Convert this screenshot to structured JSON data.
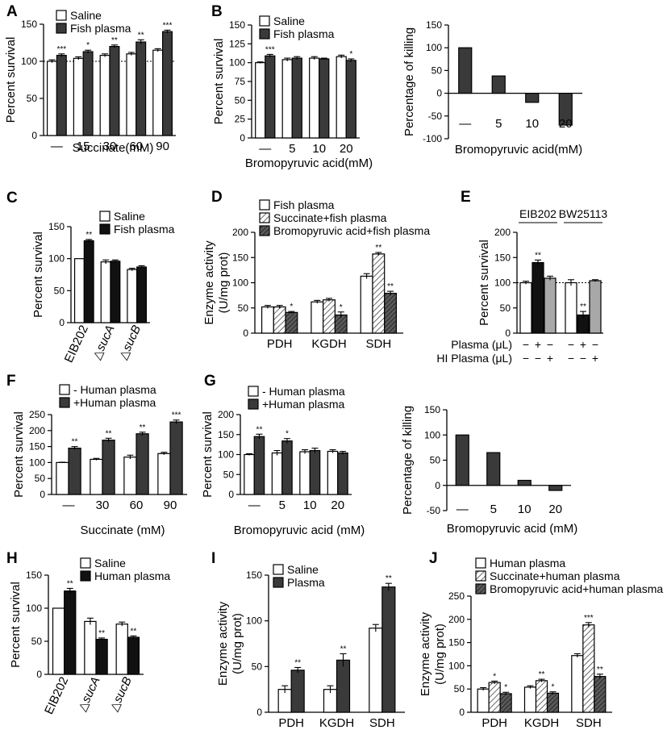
{
  "figure": {
    "title": "Multi-panel bar chart figure: percent survival, percentage of killing and enzyme activity"
  },
  "colors": {
    "black": "#111111",
    "dark": "#3a3a3a",
    "white": "#ffffff",
    "gray": "#a8a8a8"
  },
  "chart_data": [
    {
      "id": "A",
      "type": "bar",
      "letter": "A",
      "ylabel": "Percent survival",
      "xlabel": "Succinate(mM)",
      "ylim": [
        0,
        150
      ],
      "yticks": [
        0,
        50,
        100,
        150
      ],
      "categories": [
        "—",
        "15",
        "30",
        "60",
        "90"
      ],
      "series": [
        {
          "name": "Saline",
          "fill": "white",
          "values": [
            100,
            104,
            108,
            110,
            115
          ],
          "errors": [
            2,
            2,
            2,
            2,
            2
          ]
        },
        {
          "name": "Fish plasma",
          "fill": "dark",
          "values": [
            108,
            113,
            120,
            126,
            140
          ],
          "errors": [
            2,
            2,
            2,
            3,
            2
          ]
        }
      ],
      "stars": [
        [
          null,
          "***"
        ],
        [
          null,
          "*"
        ],
        [
          null,
          "**"
        ],
        [
          null,
          "**"
        ],
        [
          null,
          "***"
        ]
      ],
      "refline": 100,
      "legend": "top-left"
    },
    {
      "id": "B",
      "type": "bar",
      "letter": "B",
      "ylabel": "Percent survival",
      "xlabel": "Bromopyruvic acid(mM)",
      "ylim": [
        0,
        150
      ],
      "yticks": [
        0,
        25,
        50,
        75,
        100,
        125,
        150
      ],
      "categories": [
        "—",
        "5",
        "10",
        "20"
      ],
      "series": [
        {
          "name": "Saline",
          "fill": "white",
          "values": [
            100,
            104,
            106,
            108
          ],
          "errors": [
            1,
            2,
            2,
            2
          ]
        },
        {
          "name": "Fish plasma",
          "fill": "dark",
          "values": [
            109,
            106,
            105,
            103
          ],
          "errors": [
            2,
            2,
            1,
            2
          ]
        }
      ],
      "stars": [
        [
          null,
          "***"
        ],
        [
          null,
          null
        ],
        [
          null,
          null
        ],
        [
          null,
          "*"
        ]
      ],
      "legend": "top-left"
    },
    {
      "id": "B2",
      "type": "bar",
      "ylabel": "Percentage of  killing",
      "xlabel": "Bromopyruvic acid(mM)",
      "ylim": [
        -100,
        150
      ],
      "yticks": [
        -100,
        -50,
        0,
        50,
        100,
        150
      ],
      "categories": [
        "—",
        "5",
        "10",
        "20"
      ],
      "series": [
        {
          "name": "Percentage of killing",
          "fill": "dark",
          "values": [
            100,
            38,
            -20,
            -70
          ]
        }
      ],
      "categories_at_bottom": true
    },
    {
      "id": "C",
      "type": "bar",
      "letter": "C",
      "ylabel": "Percent survival",
      "ylim": [
        0,
        150
      ],
      "yticks": [
        0,
        50,
        100,
        150
      ],
      "categories": [
        "EIB202",
        "△sucA",
        "△sucB"
      ],
      "series": [
        {
          "name": "Saline",
          "fill": "white",
          "values": [
            100,
            95,
            83
          ],
          "errors": [
            0,
            3,
            2
          ]
        },
        {
          "name": "Fish plasma",
          "fill": "black",
          "values": [
            128,
            96,
            87
          ],
          "errors": [
            2,
            2,
            2
          ]
        }
      ],
      "stars": [
        [
          null,
          "**"
        ],
        [
          null,
          null
        ],
        [
          null,
          null
        ]
      ],
      "rotated_labels": true,
      "legend": "top-right"
    },
    {
      "id": "D",
      "type": "bar",
      "letter": "D",
      "ylabel": "Enzyme activity",
      "ylabel2": "(U/mg prot)",
      "ylim": [
        0,
        200
      ],
      "yticks": [
        0,
        50,
        100,
        150,
        200
      ],
      "categories": [
        "PDH",
        "KGDH",
        "SDH"
      ],
      "series": [
        {
          "name": "Fish plasma",
          "fill": "white",
          "values": [
            52,
            62,
            113
          ],
          "errors": [
            3,
            3,
            5
          ]
        },
        {
          "name": "Succinate+fish plasma",
          "fill": "hatch",
          "values": [
            52,
            66,
            157
          ],
          "errors": [
            3,
            3,
            3
          ]
        },
        {
          "name": "Bromopyruvic acid+fish plasma",
          "fill": "hatchdark",
          "values": [
            41,
            36,
            79
          ],
          "errors": [
            2,
            6,
            4
          ]
        }
      ],
      "stars": [
        [
          null,
          null,
          "*"
        ],
        [
          null,
          null,
          "*"
        ],
        [
          null,
          "**",
          "**"
        ]
      ],
      "legend": "top-left"
    },
    {
      "id": "E",
      "type": "bar",
      "letter": "E",
      "ylabel": "Percent survival",
      "ylim": [
        0,
        200
      ],
      "yticks": [
        0,
        50,
        100,
        150,
        200
      ],
      "group_titles": [
        "EIB202",
        "BW25113"
      ],
      "groups": [
        {
          "values": [
            100,
            140,
            109
          ],
          "errors": [
            3,
            5,
            4
          ],
          "fills": [
            "white",
            "black",
            "gray"
          ],
          "stars": [
            null,
            "**",
            null
          ]
        },
        {
          "values": [
            100,
            36,
            104
          ],
          "errors": [
            6,
            7,
            2
          ],
          "fills": [
            "white",
            "black",
            "gray"
          ],
          "stars": [
            null,
            "**",
            null
          ]
        }
      ],
      "refline": 100,
      "row_labels": [
        "Plasma (μL)",
        "HI Plasma (μL)"
      ],
      "row_signs": [
        [
          "−",
          "+",
          "−",
          "−",
          "+",
          "−"
        ],
        [
          "−",
          "−",
          "+",
          "−",
          "−",
          "+"
        ]
      ]
    },
    {
      "id": "F",
      "type": "bar",
      "letter": "F",
      "ylabel": "Percent survival",
      "xlabel": "Succinate (mM)",
      "ylim": [
        0,
        250
      ],
      "yticks": [
        0,
        50,
        100,
        150,
        200,
        250
      ],
      "categories": [
        "—",
        "30",
        "60",
        "90"
      ],
      "series": [
        {
          "name": "- Human plasma",
          "fill": "white",
          "values": [
            100,
            110,
            117,
            128
          ],
          "errors": [
            1,
            3,
            6,
            4
          ]
        },
        {
          "name": "+Human plasma",
          "fill": "dark",
          "values": [
            145,
            170,
            190,
            227
          ],
          "errors": [
            5,
            6,
            5,
            6
          ]
        }
      ],
      "stars": [
        [
          null,
          "**"
        ],
        [
          null,
          "**"
        ],
        [
          null,
          "**"
        ],
        [
          null,
          "***"
        ]
      ],
      "legend": "top-left"
    },
    {
      "id": "G",
      "type": "bar",
      "letter": "G",
      "ylabel": "Percent survival",
      "xlabel": "Bromopyruvic acid (mM)",
      "ylim": [
        0,
        200
      ],
      "yticks": [
        0,
        50,
        100,
        150,
        200
      ],
      "categories": [
        "—",
        "5",
        "10",
        "20"
      ],
      "series": [
        {
          "name": "- Human plasma",
          "fill": "white",
          "values": [
            100,
            104,
            107,
            108
          ],
          "errors": [
            2,
            6,
            5,
            4
          ]
        },
        {
          "name": "+Human plasma",
          "fill": "dark",
          "values": [
            145,
            134,
            110,
            104
          ],
          "errors": [
            6,
            6,
            6,
            4
          ]
        }
      ],
      "stars": [
        [
          null,
          "**"
        ],
        [
          null,
          "*"
        ],
        [
          null,
          null
        ],
        [
          null,
          null
        ]
      ],
      "legend": "top-left"
    },
    {
      "id": "G2",
      "type": "bar",
      "ylabel": "Percentage of  killing",
      "xlabel": "Bromopyruvic acid (mM)",
      "ylim": [
        -50,
        150
      ],
      "yticks": [
        -50,
        0,
        50,
        100,
        150
      ],
      "categories": [
        "—",
        "5",
        "10",
        "20"
      ],
      "series": [
        {
          "name": "Percentage of killing",
          "fill": "dark",
          "values": [
            100,
            65,
            10,
            -10
          ]
        }
      ],
      "categories_at_bottom": true
    },
    {
      "id": "H",
      "type": "bar",
      "letter": "H",
      "ylabel": "Percent survival",
      "ylim": [
        0,
        150
      ],
      "yticks": [
        0,
        50,
        100,
        150
      ],
      "categories": [
        "EIB202",
        "△sucA",
        "△sucB"
      ],
      "series": [
        {
          "name": "Saline",
          "fill": "white",
          "values": [
            100,
            80,
            76
          ],
          "errors": [
            0,
            5,
            3
          ]
        },
        {
          "name": "Human plasma",
          "fill": "black",
          "values": [
            126,
            53,
            56
          ],
          "errors": [
            4,
            2,
            2
          ]
        }
      ],
      "stars": [
        [
          null,
          "**"
        ],
        [
          null,
          "**"
        ],
        [
          null,
          "**"
        ]
      ],
      "rotated_labels": true,
      "legend": "top-right"
    },
    {
      "id": "I",
      "type": "bar",
      "letter": "I",
      "ylabel": "Enzyme activity",
      "ylabel2": "(U/mg prot)",
      "ylim": [
        0,
        150
      ],
      "yticks": [
        0,
        50,
        100,
        150
      ],
      "categories": [
        "PDH",
        "KGDH",
        "SDH"
      ],
      "series": [
        {
          "name": "Saline",
          "fill": "white",
          "values": [
            25,
            25,
            92
          ],
          "errors": [
            4,
            4,
            4
          ]
        },
        {
          "name": "Plasma",
          "fill": "dark",
          "values": [
            46,
            57,
            137
          ],
          "errors": [
            3,
            7,
            4
          ]
        }
      ],
      "stars": [
        [
          null,
          "**"
        ],
        [
          null,
          "**"
        ],
        [
          null,
          "**"
        ]
      ],
      "legend": "top-left"
    },
    {
      "id": "J",
      "type": "bar",
      "letter": "J",
      "ylabel": "Enzyme activity",
      "ylabel2": "(U/mg prot)",
      "ylim": [
        0,
        250
      ],
      "yticks": [
        0,
        50,
        100,
        150,
        200,
        250
      ],
      "categories": [
        "PDH",
        "KGDH",
        "SDH"
      ],
      "series": [
        {
          "name": "Human plasma",
          "fill": "white",
          "values": [
            50,
            54,
            122
          ],
          "errors": [
            3,
            3,
            4
          ]
        },
        {
          "name": "Succinate+human plasma",
          "fill": "hatch",
          "values": [
            64,
            68,
            188
          ],
          "errors": [
            3,
            3,
            5
          ]
        },
        {
          "name": "Bromopyruvic acid+human plasma",
          "fill": "hatchdark",
          "values": [
            40,
            41,
            77
          ],
          "errors": [
            3,
            3,
            5
          ]
        }
      ],
      "stars": [
        [
          null,
          "*",
          "*"
        ],
        [
          null,
          "**",
          "*"
        ],
        [
          null,
          "***",
          "**"
        ]
      ],
      "legend": "top-left"
    }
  ]
}
